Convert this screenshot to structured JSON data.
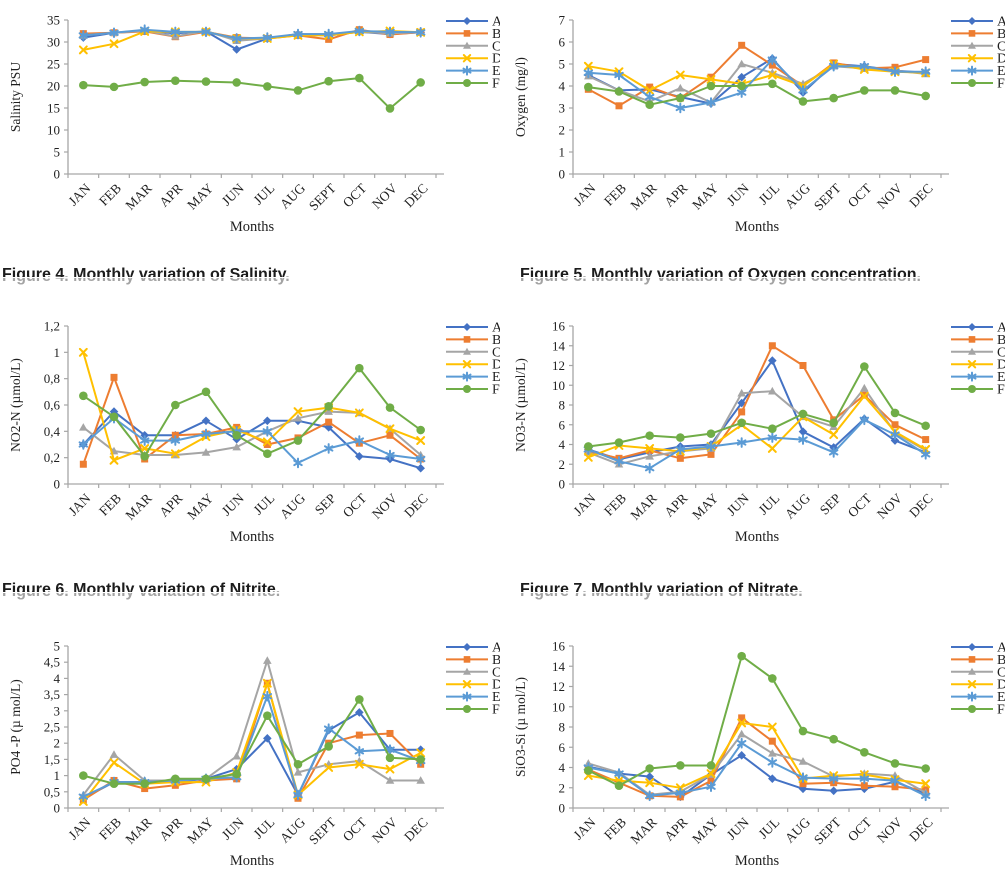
{
  "palette": {
    "A": "#4472C4",
    "B": "#ED7D31",
    "C": "#A5A5A5",
    "D": "#FFC000",
    "E": "#5B9BD5",
    "F": "#70AD47",
    "axis": "#A6A6A6",
    "text": "#1F1F1F"
  },
  "captions": [
    {
      "text": "Figure 4. Monthly variation of Salinity."
    },
    {
      "text": "Figure 5. Monthly variation of Oxygen concentration."
    },
    {
      "text": "Figure 6. Monthly variation of Nitrite."
    },
    {
      "text": "Figure 7. Monthly variation of Nitrate."
    }
  ],
  "chart_data": [
    {
      "id": "salinity",
      "type": "line",
      "title": "",
      "ylabel": "Salinity PSU",
      "xlabel": "Months",
      "ylim": [
        0,
        35
      ],
      "yticks": [
        "0",
        "5",
        "10",
        "15",
        "20",
        "25",
        "30",
        "35"
      ],
      "grid": false,
      "legend_position": "right",
      "categories": [
        "JAN",
        "FEB",
        "MAR",
        "APR",
        "MAY",
        "JUN",
        "JUL",
        "AUG",
        "SEPT",
        "OCT",
        "NOV",
        "DEC"
      ],
      "series": [
        {
          "name": "A",
          "color": "#4472C4",
          "marker": "diamond",
          "values": [
            31.0,
            32.1,
            32.5,
            32.0,
            32.4,
            28.3,
            30.8,
            31.8,
            31.5,
            32.3,
            31.8,
            32.2
          ]
        },
        {
          "name": "B",
          "color": "#ED7D31",
          "marker": "square",
          "values": [
            31.9,
            32.1,
            32.4,
            31.2,
            32.3,
            31.0,
            30.8,
            31.5,
            30.6,
            32.8,
            31.7,
            32.2
          ]
        },
        {
          "name": "C",
          "color": "#A5A5A5",
          "marker": "triangle",
          "values": [
            31.5,
            32.1,
            32.6,
            31.3,
            32.5,
            30.3,
            30.8,
            31.8,
            31.8,
            32.3,
            32.0,
            32.2
          ]
        },
        {
          "name": "D",
          "color": "#FFC000",
          "marker": "x",
          "values": [
            28.2,
            29.6,
            32.4,
            32.3,
            32.3,
            30.8,
            30.8,
            31.5,
            31.5,
            32.3,
            32.5,
            32.2
          ]
        },
        {
          "name": "E",
          "color": "#5B9BD5",
          "marker": "star",
          "values": [
            31.5,
            32.1,
            32.8,
            32.3,
            32.3,
            30.8,
            31.0,
            31.8,
            31.8,
            32.5,
            32.3,
            32.2
          ]
        },
        {
          "name": "F",
          "color": "#70AD47",
          "marker": "circle",
          "values": [
            20.2,
            19.8,
            20.9,
            21.2,
            21.0,
            20.8,
            19.9,
            19.0,
            21.1,
            21.8,
            14.9,
            20.8
          ]
        }
      ]
    },
    {
      "id": "oxygen",
      "type": "line",
      "title": "",
      "ylabel": "Oxygen (mg/l)",
      "xlabel": "Months",
      "ylim": [
        0,
        7
      ],
      "yticks": [
        "0",
        "1",
        "2",
        "3",
        "4",
        "5",
        "6",
        "7"
      ],
      "grid": false,
      "legend_position": "right",
      "categories": [
        "JAN",
        "FEB",
        "MAR",
        "APR",
        "MAY",
        "JUN",
        "JUL",
        "AUG",
        "SEPT",
        "OCT",
        "NOV",
        "DEC"
      ],
      "series": [
        {
          "name": "A",
          "color": "#4472C4",
          "marker": "diamond",
          "values": [
            4.5,
            3.8,
            3.85,
            3.5,
            3.2,
            4.4,
            5.25,
            3.7,
            5.0,
            4.9,
            4.7,
            4.6
          ]
        },
        {
          "name": "B",
          "color": "#ED7D31",
          "marker": "square",
          "values": [
            3.85,
            3.1,
            3.95,
            3.45,
            4.4,
            5.85,
            4.95,
            4.0,
            5.05,
            4.8,
            4.85,
            5.2
          ]
        },
        {
          "name": "C",
          "color": "#A5A5A5",
          "marker": "triangle",
          "values": [
            4.45,
            3.8,
            3.3,
            3.9,
            3.25,
            5.0,
            4.6,
            4.1,
            4.9,
            4.8,
            4.7,
            4.55
          ]
        },
        {
          "name": "D",
          "color": "#FFC000",
          "marker": "x",
          "values": [
            4.9,
            4.65,
            3.8,
            4.5,
            4.3,
            4.1,
            4.5,
            4.0,
            5.0,
            4.75,
            4.65,
            4.6
          ]
        },
        {
          "name": "E",
          "color": "#5B9BD5",
          "marker": "star",
          "values": [
            4.6,
            4.5,
            3.5,
            3.0,
            3.25,
            3.7,
            5.2,
            3.8,
            4.9,
            4.9,
            4.65,
            4.65
          ]
        },
        {
          "name": "F",
          "color": "#70AD47",
          "marker": "circle",
          "values": [
            3.95,
            3.75,
            3.15,
            3.45,
            4.0,
            4.0,
            4.1,
            3.3,
            3.45,
            3.8,
            3.8,
            3.55
          ]
        }
      ]
    },
    {
      "id": "nitrite",
      "type": "line",
      "title": "",
      "ylabel": "NO2-N (µmol/L)",
      "xlabel": "Months",
      "ylim": [
        0,
        1.2
      ],
      "yticks": [
        "0",
        "0,2",
        "0,4",
        "0,6",
        "0,8",
        "1",
        "1,2"
      ],
      "grid": false,
      "legend_position": "right",
      "categories": [
        "JAN",
        "FEB",
        "MAR",
        "APR",
        "MAY",
        "JUN",
        "JUL",
        "AUG",
        "SEP",
        "OCT",
        "NOV",
        "DEC"
      ],
      "series": [
        {
          "name": "A",
          "color": "#4472C4",
          "marker": "diamond",
          "values": [
            0.3,
            0.55,
            0.37,
            0.37,
            0.48,
            0.34,
            0.48,
            0.48,
            0.43,
            0.21,
            0.19,
            0.12
          ]
        },
        {
          "name": "B",
          "color": "#ED7D31",
          "marker": "square",
          "values": [
            0.15,
            0.81,
            0.19,
            0.37,
            0.38,
            0.43,
            0.3,
            0.35,
            0.47,
            0.31,
            0.37,
            0.19
          ]
        },
        {
          "name": "C",
          "color": "#A5A5A5",
          "marker": "triangle",
          "values": [
            0.43,
            0.25,
            0.22,
            0.22,
            0.24,
            0.28,
            0.4,
            0.5,
            0.55,
            0.54,
            0.42,
            0.22
          ]
        },
        {
          "name": "D",
          "color": "#FFC000",
          "marker": "x",
          "values": [
            1.0,
            0.18,
            0.27,
            0.23,
            0.36,
            0.41,
            0.32,
            0.55,
            0.58,
            0.54,
            0.42,
            0.33
          ]
        },
        {
          "name": "E",
          "color": "#5B9BD5",
          "marker": "star",
          "values": [
            0.3,
            0.5,
            0.33,
            0.33,
            0.38,
            0.4,
            0.4,
            0.16,
            0.27,
            0.33,
            0.22,
            0.19
          ]
        },
        {
          "name": "F",
          "color": "#70AD47",
          "marker": "circle",
          "values": [
            0.67,
            0.51,
            0.21,
            0.6,
            0.7,
            0.37,
            0.23,
            0.33,
            0.59,
            0.88,
            0.58,
            0.41
          ]
        }
      ]
    },
    {
      "id": "nitrate",
      "type": "line",
      "title": "",
      "ylabel": "NO3-N (µmol/L)",
      "xlabel": "Months",
      "ylim": [
        0,
        16
      ],
      "yticks": [
        "0",
        "2",
        "4",
        "6",
        "8",
        "10",
        "12",
        "14",
        "16"
      ],
      "grid": false,
      "legend_position": "right",
      "categories": [
        "JAN",
        "FEB",
        "MAR",
        "APR",
        "MAY",
        "JUN",
        "JUL",
        "AUG",
        "SEP",
        "OCT",
        "NOV",
        "DEC"
      ],
      "series": [
        {
          "name": "A",
          "color": "#4472C4",
          "marker": "diamond",
          "values": [
            3.5,
            2.5,
            3.2,
            3.8,
            4.0,
            8.2,
            12.5,
            5.3,
            3.7,
            6.6,
            4.4,
            3.2
          ]
        },
        {
          "name": "B",
          "color": "#ED7D31",
          "marker": "square",
          "values": [
            3.3,
            2.6,
            3.4,
            2.6,
            3.0,
            7.3,
            14.0,
            12.0,
            6.5,
            9.0,
            6.0,
            4.5
          ]
        },
        {
          "name": "C",
          "color": "#A5A5A5",
          "marker": "triangle",
          "values": [
            3.2,
            2.0,
            2.8,
            3.3,
            3.6,
            9.2,
            9.4,
            6.8,
            5.8,
            9.7,
            5.2,
            3.4
          ]
        },
        {
          "name": "D",
          "color": "#FFC000",
          "marker": "x",
          "values": [
            2.7,
            3.9,
            3.6,
            3.3,
            3.8,
            6.0,
            3.6,
            6.8,
            5.0,
            8.9,
            5.3,
            3.5
          ]
        },
        {
          "name": "E",
          "color": "#5B9BD5",
          "marker": "star",
          "values": [
            3.5,
            2.3,
            1.6,
            3.5,
            3.8,
            4.2,
            4.7,
            4.5,
            3.2,
            6.5,
            5.0,
            3.0
          ]
        },
        {
          "name": "F",
          "color": "#70AD47",
          "marker": "circle",
          "values": [
            3.8,
            4.2,
            4.9,
            4.7,
            5.1,
            6.2,
            5.6,
            7.1,
            6.2,
            11.9,
            7.2,
            5.9
          ]
        }
      ]
    },
    {
      "id": "phosphate",
      "type": "line",
      "title": "",
      "ylabel": "PO4 -P (µ mol/L)",
      "xlabel": "Months",
      "ylim": [
        0,
        5
      ],
      "yticks": [
        "0",
        "0,5",
        "1",
        "1,5",
        "2",
        "2,5",
        "3",
        "3,5",
        "4",
        "4,5",
        "5"
      ],
      "grid": false,
      "legend_position": "right",
      "categories": [
        "JAN",
        "FEB",
        "MAR",
        "APR",
        "MAY",
        "JUN",
        "JUL",
        "AUG",
        "SEPT",
        "OCT",
        "NOV",
        "DEC"
      ],
      "series": [
        {
          "name": "A",
          "color": "#4472C4",
          "marker": "diamond",
          "values": [
            0.3,
            0.8,
            0.8,
            0.8,
            0.9,
            1.2,
            2.15,
            0.4,
            2.4,
            2.95,
            1.8,
            1.8
          ]
        },
        {
          "name": "B",
          "color": "#ED7D31",
          "marker": "square",
          "values": [
            0.25,
            0.85,
            0.6,
            0.7,
            0.85,
            0.9,
            3.85,
            0.3,
            2.0,
            2.25,
            2.3,
            1.35
          ]
        },
        {
          "name": "C",
          "color": "#A5A5A5",
          "marker": "triangle",
          "values": [
            0.4,
            1.65,
            0.85,
            0.85,
            0.9,
            1.6,
            4.55,
            1.1,
            1.35,
            1.45,
            0.85,
            0.85
          ]
        },
        {
          "name": "D",
          "color": "#FFC000",
          "marker": "x",
          "values": [
            0.2,
            1.4,
            0.75,
            0.8,
            0.8,
            1.1,
            3.85,
            0.4,
            1.25,
            1.35,
            1.2,
            1.7
          ]
        },
        {
          "name": "E",
          "color": "#5B9BD5",
          "marker": "star",
          "values": [
            0.35,
            0.8,
            0.8,
            0.85,
            0.9,
            0.95,
            3.45,
            0.4,
            2.45,
            1.75,
            1.8,
            1.45
          ]
        },
        {
          "name": "F",
          "color": "#70AD47",
          "marker": "circle",
          "values": [
            1.0,
            0.75,
            0.75,
            0.9,
            0.9,
            1.05,
            2.85,
            1.35,
            1.9,
            3.35,
            1.55,
            1.5
          ]
        }
      ]
    },
    {
      "id": "silicate",
      "type": "line",
      "title": "",
      "ylabel": "SiO3-Si (µ mol/L)",
      "xlabel": "Months",
      "ylim": [
        0,
        16
      ],
      "yticks": [
        "0",
        "2",
        "4",
        "6",
        "8",
        "10",
        "12",
        "14",
        "16"
      ],
      "grid": false,
      "legend_position": "right",
      "categories": [
        "JAN",
        "FEB",
        "MAR",
        "APR",
        "MAY",
        "JUN",
        "JUL",
        "AUG",
        "SEPT",
        "OCT",
        "NOV",
        "DEC"
      ],
      "series": [
        {
          "name": "A",
          "color": "#4472C4",
          "marker": "diamond",
          "values": [
            4.1,
            3.4,
            3.1,
            1.1,
            3.3,
            5.2,
            2.9,
            1.9,
            1.7,
            1.9,
            2.6,
            1.4
          ]
        },
        {
          "name": "B",
          "color": "#ED7D31",
          "marker": "square",
          "values": [
            3.8,
            2.5,
            1.2,
            1.1,
            2.7,
            8.9,
            6.6,
            2.4,
            2.5,
            2.2,
            2.1,
            1.8
          ]
        },
        {
          "name": "C",
          "color": "#A5A5A5",
          "marker": "triangle",
          "values": [
            4.4,
            3.5,
            1.3,
            1.6,
            3.3,
            7.3,
            5.4,
            4.6,
            3.1,
            3.4,
            3.2,
            1.5
          ]
        },
        {
          "name": "D",
          "color": "#FFC000",
          "marker": "x",
          "values": [
            3.2,
            2.7,
            2.5,
            2.0,
            3.4,
            8.4,
            8.0,
            2.9,
            3.2,
            3.3,
            2.8,
            2.4
          ]
        },
        {
          "name": "E",
          "color": "#5B9BD5",
          "marker": "star",
          "values": [
            4.0,
            3.4,
            1.2,
            1.5,
            2.1,
            6.4,
            4.5,
            3.0,
            2.9,
            2.9,
            2.7,
            1.2
          ]
        },
        {
          "name": "F",
          "color": "#70AD47",
          "marker": "circle",
          "values": [
            3.7,
            2.2,
            3.9,
            4.2,
            4.2,
            15.0,
            12.8,
            7.6,
            6.8,
            5.5,
            4.4,
            3.9
          ]
        }
      ]
    }
  ]
}
